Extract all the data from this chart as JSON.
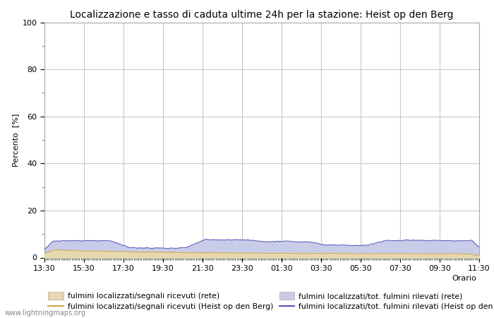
{
  "title": "Localizzazione e tasso di caduta ultime 24h per la stazione: Heist op den Berg",
  "ylabel": "Percento  [%]",
  "ylim": [
    0,
    100
  ],
  "yticks": [
    0,
    20,
    40,
    60,
    80,
    100
  ],
  "yticks_minor": [
    10,
    30,
    50,
    70,
    90
  ],
  "xtick_labels": [
    "13:30",
    "15:30",
    "17:30",
    "19:30",
    "21:30",
    "23:30",
    "01:30",
    "03:30",
    "05:30",
    "07:30",
    "09:30",
    "11:30"
  ],
  "background_color": "#ffffff",
  "plot_bg_color": "#ffffff",
  "grid_color": "#c8c8c8",
  "fill_rete_color": "#e8d8b0",
  "fill_station_color": "#c8cce8",
  "line_rete_color": "#ccaa44",
  "line_station_color": "#5555bb",
  "watermark": "www.lightningmaps.org",
  "legend_labels": [
    "fulmini localizzati/segnali ricevuti (rete)",
    "fulmini localizzati/segnali ricevuti (Heist op den Berg)",
    "fulmini localizzati/tot. fulmini rilevati (rete)",
    "fulmini localizzati/tot. fulmini rilevati (Heist op den Berg)"
  ]
}
